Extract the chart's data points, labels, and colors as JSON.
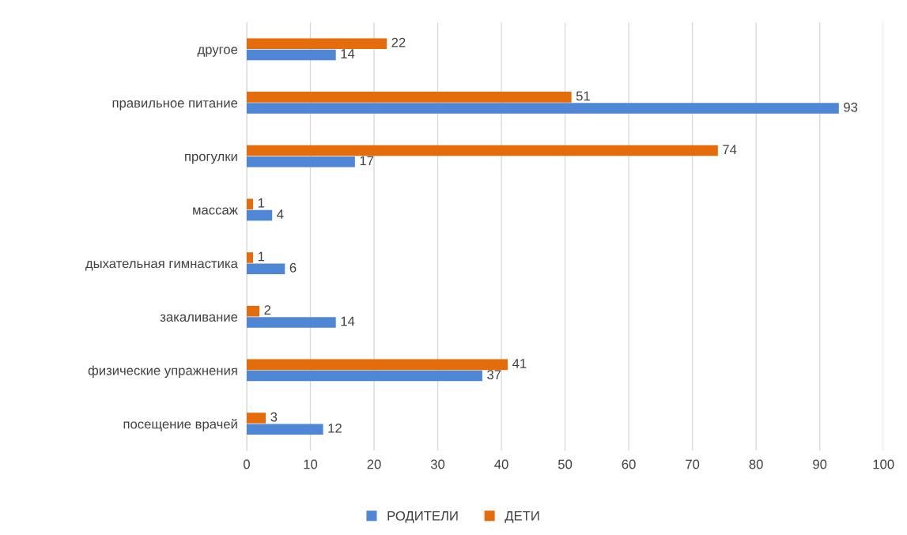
{
  "chart_data": {
    "type": "bar",
    "orientation": "horizontal",
    "categories": [
      "другое",
      "правильное питание",
      "прогулки",
      "массаж",
      "дыхательная гимнастика",
      "закаливание",
      "физические упражнения",
      "посещение врачей"
    ],
    "series": [
      {
        "name": "РОДИТЕЛИ",
        "color": "#4f86d6",
        "values": [
          14,
          93,
          17,
          4,
          6,
          14,
          37,
          12
        ]
      },
      {
        "name": "ДЕТИ",
        "color": "#e46c0a",
        "values": [
          22,
          51,
          74,
          1,
          1,
          2,
          41,
          3
        ]
      }
    ],
    "xlim": [
      0,
      100
    ],
    "xticks": [
      0,
      10,
      20,
      30,
      40,
      50,
      60,
      70,
      80,
      90,
      100
    ],
    "grid": "x",
    "legend": "bottom",
    "data_labels": true
  }
}
